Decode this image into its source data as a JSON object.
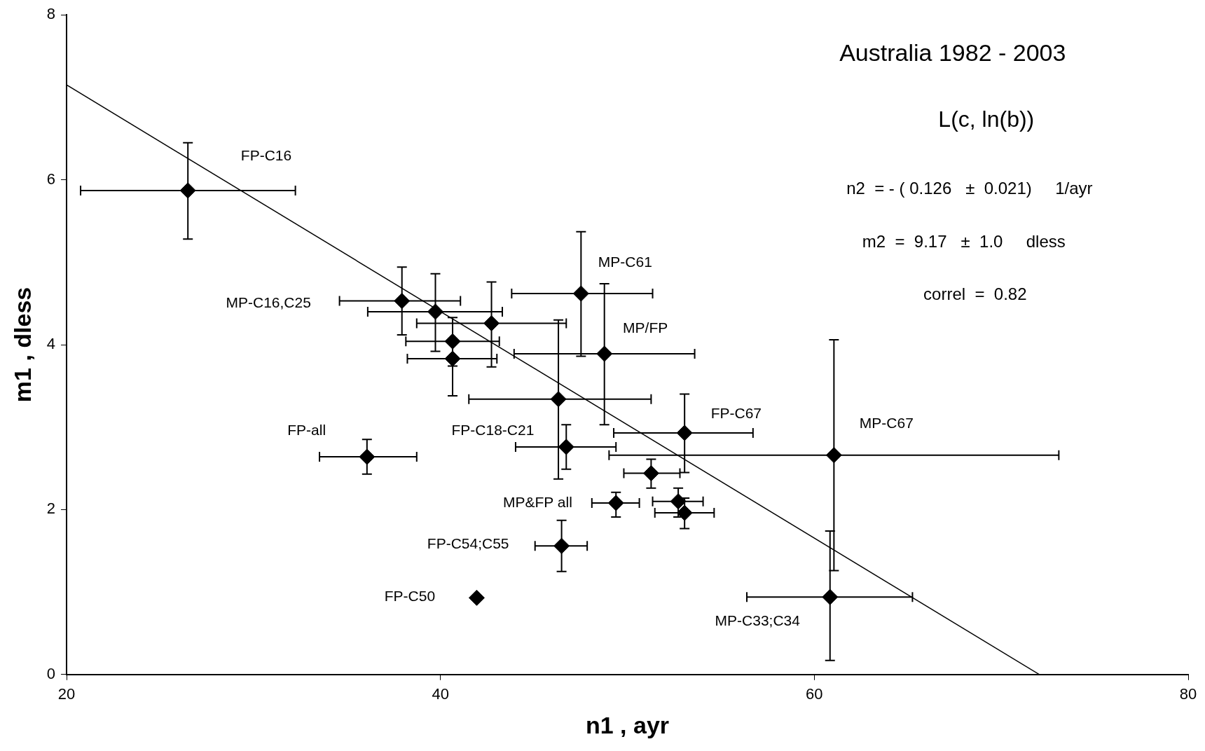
{
  "chart_data": {
    "type": "scatter",
    "xlabel": "n1 , ayr",
    "ylabel": "m1 , dless",
    "xlim": [
      20,
      80
    ],
    "xticks": [
      20,
      40,
      60,
      80
    ],
    "ylim": [
      0,
      8
    ],
    "yticks": [
      0,
      2,
      4,
      6,
      8
    ],
    "marker": "diamond",
    "legend": false,
    "series": [
      {
        "color": "#000000",
        "x": [
          26.49,
          37.94,
          39.73,
          42.73,
          40.65,
          40.65,
          47.52,
          48.77,
          46.31,
          53.06,
          46.73,
          36.07,
          61.05,
          51.27,
          52.72,
          53.06,
          49.39,
          46.48,
          41.94,
          60.84
        ],
        "values": [
          5.87,
          4.53,
          4.4,
          4.26,
          4.04,
          3.83,
          4.62,
          3.89,
          3.34,
          2.93,
          2.76,
          2.64,
          2.66,
          2.44,
          2.1,
          1.96,
          2.08,
          1.56,
          0.93,
          0.94
        ],
        "xerrors": [
          [
            20.75,
            32.24
          ],
          [
            34.6,
            41.07
          ],
          [
            36.11,
            43.31
          ],
          [
            38.73,
            46.73
          ],
          [
            38.15,
            43.15
          ],
          [
            38.23,
            43.02
          ],
          [
            43.81,
            51.35
          ],
          [
            43.94,
            53.6
          ],
          [
            41.52,
            51.27
          ],
          [
            49.27,
            56.72
          ],
          [
            44.02,
            49.39
          ],
          [
            33.53,
            38.73
          ],
          [
            49.02,
            73.08
          ],
          [
            49.81,
            52.81
          ],
          [
            51.35,
            54.05
          ],
          [
            51.47,
            54.64
          ],
          [
            48.1,
            50.64
          ],
          [
            45.06,
            47.85
          ],
          null,
          [
            56.39,
            65.25
          ]
        ],
        "errors": [
          [
            5.28,
            6.45
          ],
          [
            4.12,
            4.94
          ],
          [
            3.92,
            4.86
          ],
          [
            3.73,
            4.76
          ],
          [
            3.74,
            4.33
          ],
          [
            3.38,
            3.83
          ],
          [
            3.86,
            5.37
          ],
          [
            3.03,
            4.74
          ],
          [
            2.37,
            4.3
          ],
          [
            2.45,
            3.4
          ],
          [
            2.49,
            3.03
          ],
          [
            2.43,
            2.85
          ],
          [
            1.26,
            4.06
          ],
          [
            2.26,
            2.61
          ],
          [
            1.91,
            2.26
          ],
          [
            1.77,
            2.14
          ],
          [
            1.91,
            2.21
          ],
          [
            1.25,
            1.87
          ],
          null,
          [
            0.17,
            1.74
          ]
        ]
      },
      {
        "type": "line",
        "color": "#000000",
        "x": [
          20,
          72.04
        ],
        "values": [
          7.15,
          0
        ],
        "marker": "none"
      }
    ],
    "annotations": [
      "Australia 1982 - 2003",
      "L(c, ln(b))",
      "n2  = - ( 0.126   ±  0.021)     1/ayr",
      "m2  =  9.17   ±  1.0     dless",
      "correl  =  0.82",
      "FP-C16",
      "MP-C16,C25",
      "MP-C61",
      "MP/FP",
      "FP-C67",
      "MP-C67",
      "FP-all",
      "FP-C18-C21",
      "MP&FP all",
      "FP-C54;C55",
      "FP-C50",
      "MP-C33;C34"
    ]
  }
}
